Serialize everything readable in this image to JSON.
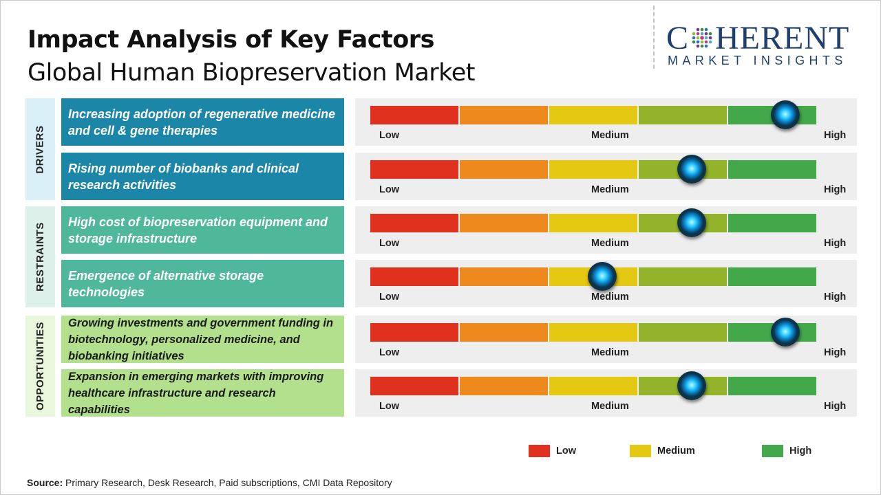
{
  "title": "Impact Analysis of Key Factors",
  "subtitle": "Global Human Biopreservation Market",
  "logo": {
    "main_left": "C",
    "main_right": "HERENT",
    "sub": "MARKET INSIGHTS"
  },
  "colors": {
    "low": "#e0301e",
    "low_mid": "#ee8a1d",
    "medium": "#e5c812",
    "mid_high": "#93b42a",
    "high": "#42a84a",
    "drivers_factor": "#1b86a8",
    "drivers_cat": "#daf0f8",
    "restraints_factor": "#4fb79a",
    "restraints_cat": "#ddf1ea",
    "opportunities_factor": "#b2e08c",
    "opportunities_cat": "#e9f7dc"
  },
  "scale_labels": {
    "low": "Low",
    "medium": "Medium",
    "high": "High"
  },
  "legend": [
    {
      "label": "Low",
      "color": "#e0301e"
    },
    {
      "label": "Medium",
      "color": "#e5c812"
    },
    {
      "label": "High",
      "color": "#42a84a"
    }
  ],
  "source_label": "Source:",
  "source_text": " Primary Research, Desk Research, Paid subscriptions, CMI Data Repository",
  "chart_data": {
    "type": "gauge",
    "scale": [
      "Low",
      "Medium",
      "High"
    ],
    "groups": [
      {
        "category": "DRIVERS",
        "factors": [
          {
            "text": "Increasing adoption of regenerative medicine and cell & gene therapies",
            "impact": 0.93
          },
          {
            "text": "Rising number of biobanks and clinical research activities",
            "impact": 0.72
          }
        ]
      },
      {
        "category": "RESTRAINTS",
        "factors": [
          {
            "text": "High cost of biopreservation equipment and storage infrastructure",
            "impact": 0.72
          },
          {
            "text": "Emergence of alternative storage technologies",
            "impact": 0.52
          }
        ]
      },
      {
        "category": "OPPORTUNITIES",
        "factors": [
          {
            "text": "Growing investments and government funding in biotechnology, personalized medicine, and biobanking initiatives",
            "impact": 0.93
          },
          {
            "text": "Expansion in emerging markets with improving healthcare infrastructure and research capabilities",
            "impact": 0.72
          }
        ]
      }
    ]
  }
}
